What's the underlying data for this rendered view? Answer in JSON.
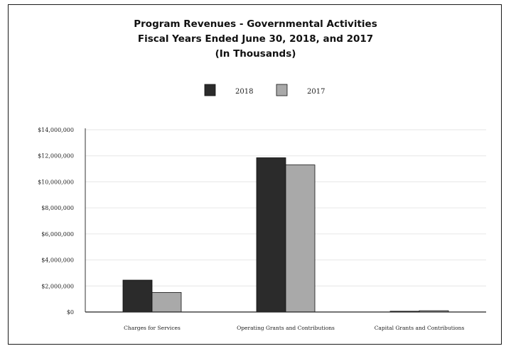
{
  "chart_data": {
    "type": "bar",
    "title_lines": [
      "Program Revenues - Governmental Activities",
      "Fiscal Years Ended June 30, 2018, and 2017",
      "(In Thousands)"
    ],
    "categories": [
      "Charges for Services",
      "Operating Grants and Contributions",
      "Capital Grants and Contributions"
    ],
    "series": [
      {
        "name": "2018",
        "color": "#2b2b2b",
        "values": [
          2450000,
          11850000,
          60000
        ]
      },
      {
        "name": "2017",
        "color": "#a9a9a9",
        "values": [
          1500000,
          11300000,
          100000
        ]
      }
    ],
    "y_ticks": [
      "$0",
      "$2,000,000",
      "$4,000,000",
      "$6,000,000",
      "$8,000,000",
      "$10,000,000",
      "$12,000,000",
      "$14,000,000"
    ],
    "ylim": [
      0,
      14000000
    ],
    "legend_position": "top-center",
    "grid": true
  }
}
